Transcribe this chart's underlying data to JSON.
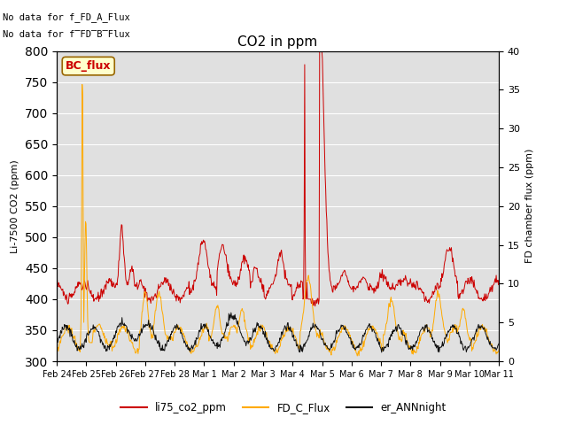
{
  "title": "CO2 in ppm",
  "ylabel_left": "Li-7500 CO2 (ppm)",
  "ylabel_right": "FD chamber flux (ppm)",
  "ylim_left": [
    300,
    800
  ],
  "ylim_right": [
    0,
    40
  ],
  "yticks_left": [
    300,
    350,
    400,
    450,
    500,
    550,
    600,
    650,
    700,
    750,
    800
  ],
  "yticks_right": [
    0,
    5,
    10,
    15,
    20,
    25,
    30,
    35,
    40
  ],
  "text_nodata1": "No data for f_FD_A_Flux",
  "text_nodata2": "No data for f̅FD̅B̅Flux",
  "bc_flux_label": "BC_flux",
  "legend_entries": [
    "li75_co2_ppm",
    "FD_C_Flux",
    "er_ANNnight"
  ],
  "colors": {
    "li75": "#cc0000",
    "fd_c": "#ffaa00",
    "er_ann": "#111111",
    "bc_flux_bg": "#ffffcc",
    "bc_flux_border": "#996600",
    "bc_flux_text": "#cc0000",
    "bg": "#e0e0e0"
  },
  "xtick_labels": [
    "Feb 24",
    "Feb 25",
    "Feb 26",
    "Feb 27",
    "Feb 28",
    "Mar 1",
    "Mar 2",
    "Mar 3",
    "Mar 4",
    "Mar 5",
    "Mar 6",
    "Mar 7",
    "Mar 8",
    "Mar 9",
    "Mar 10",
    "Mar 11"
  ],
  "n_points": 800
}
